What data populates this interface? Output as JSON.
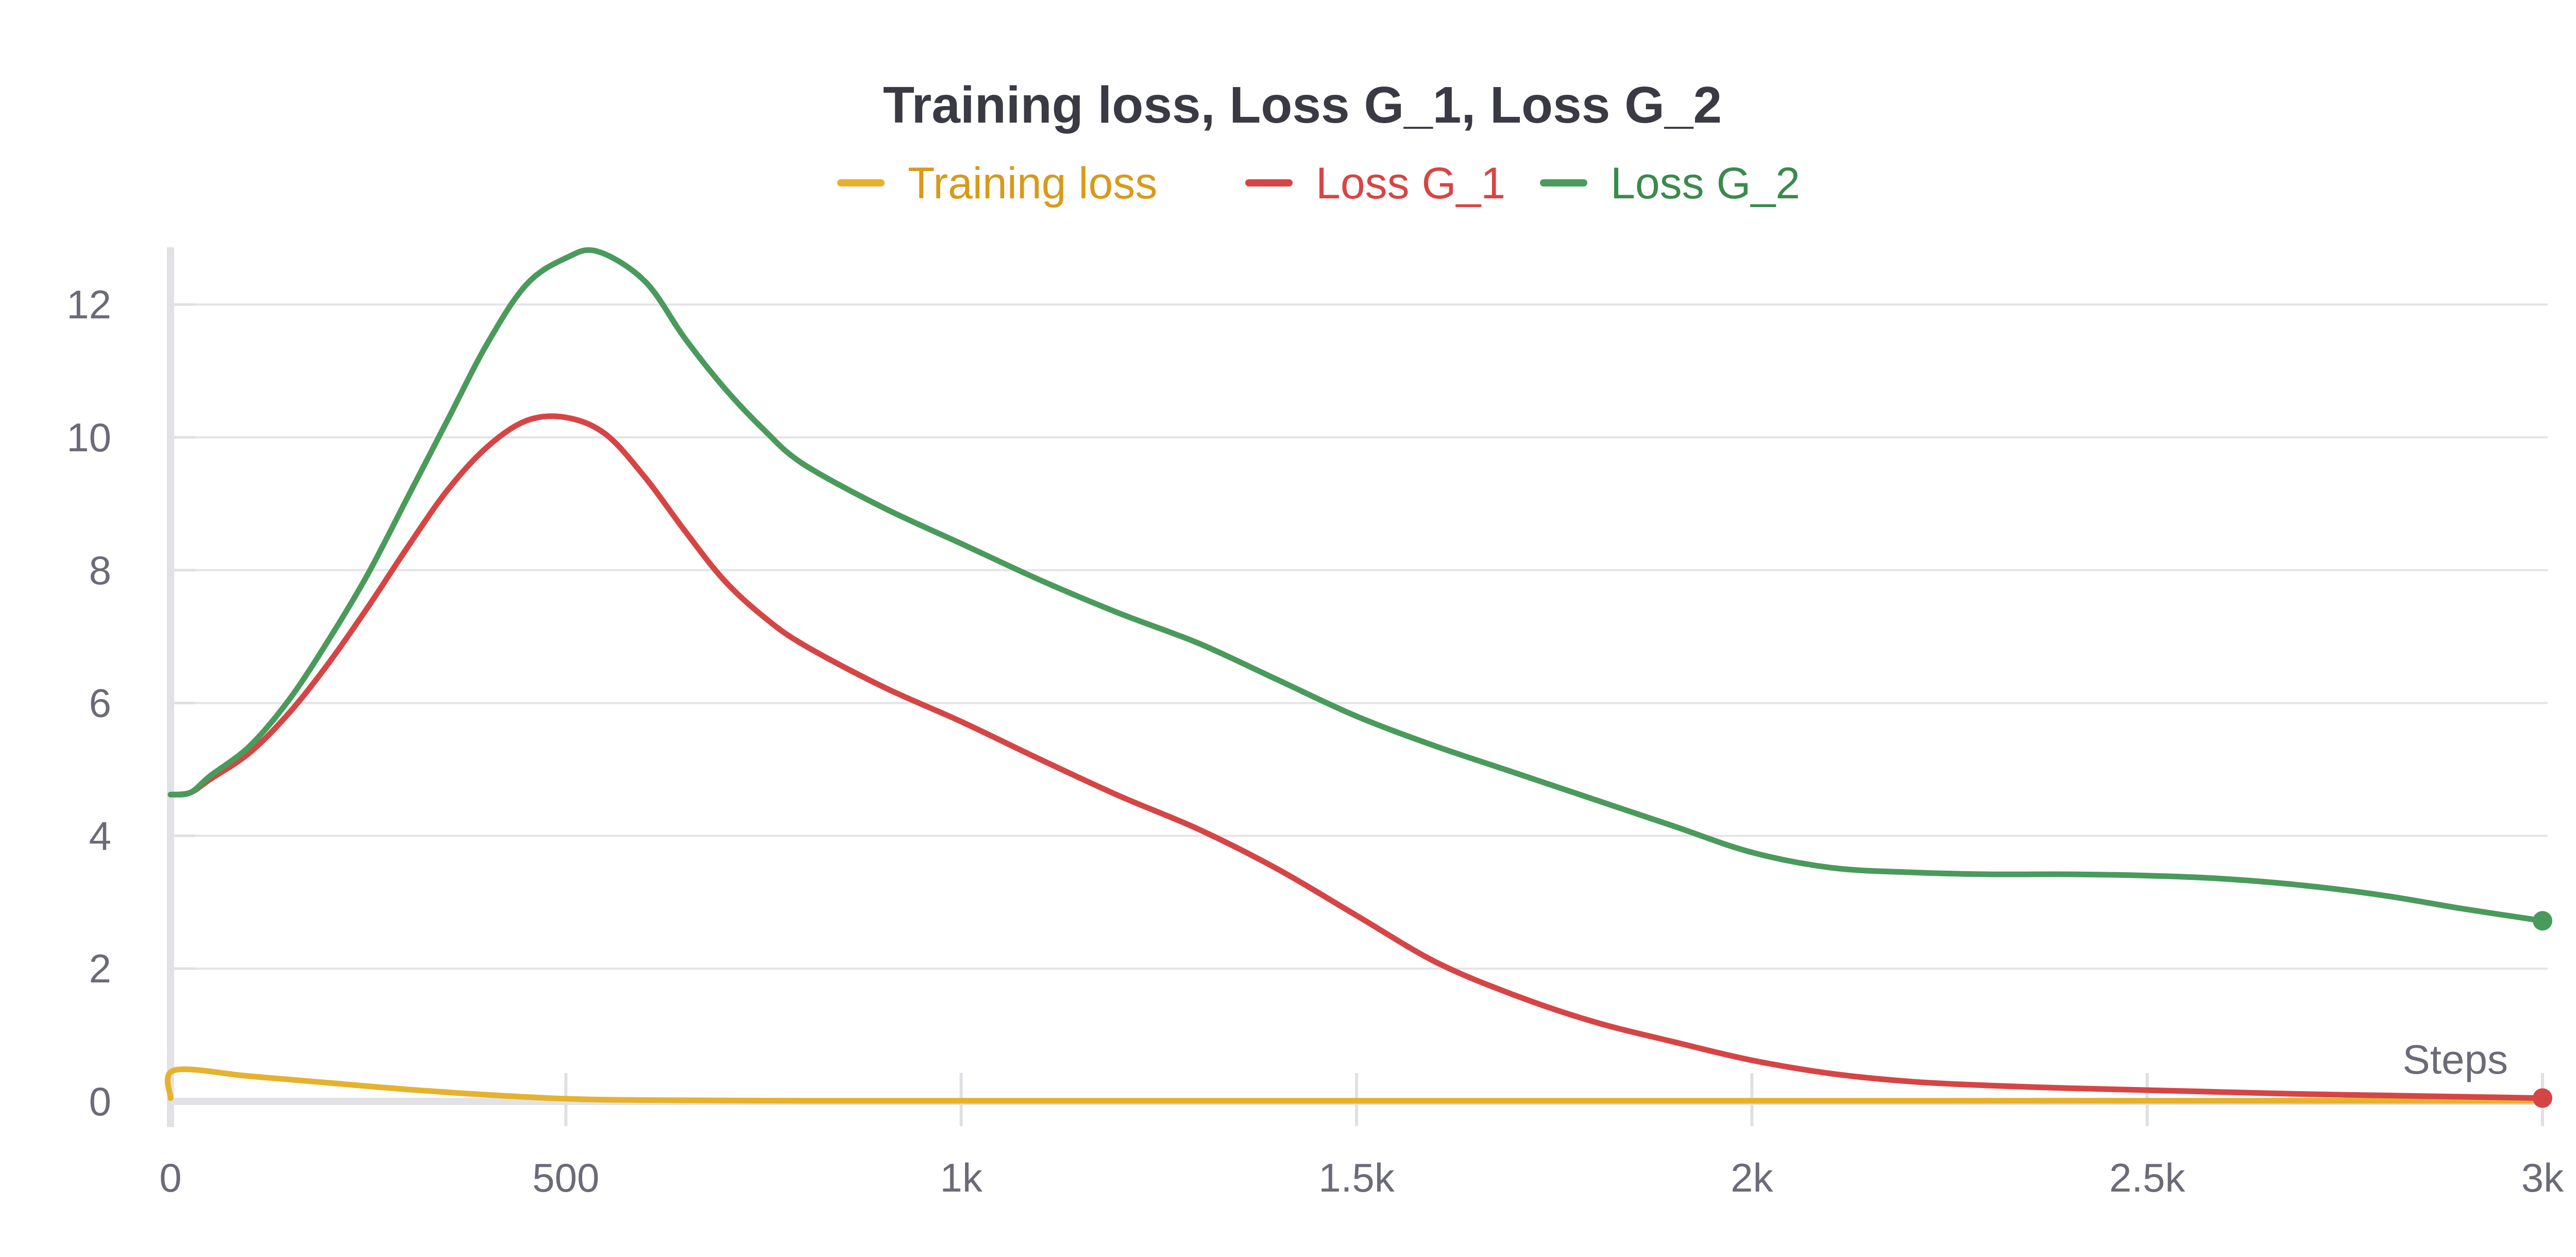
{
  "chart_data": {
    "type": "line",
    "title": "Training loss, Loss G_1, Loss G_2",
    "xlabel": "Steps",
    "ylabel": "",
    "xlim": [
      0,
      3000
    ],
    "ylim": [
      0,
      12.8
    ],
    "x_ticks": [
      {
        "value": 0,
        "label": "0"
      },
      {
        "value": 500,
        "label": "500"
      },
      {
        "value": 1000,
        "label": "1k"
      },
      {
        "value": 1500,
        "label": "1.5k"
      },
      {
        "value": 2000,
        "label": "2k"
      },
      {
        "value": 2500,
        "label": "2.5k"
      },
      {
        "value": 3000,
        "label": "3k"
      }
    ],
    "y_ticks": [
      {
        "value": 0,
        "label": "0"
      },
      {
        "value": 2,
        "label": "2"
      },
      {
        "value": 4,
        "label": "4"
      },
      {
        "value": 6,
        "label": "6"
      },
      {
        "value": 8,
        "label": "8"
      },
      {
        "value": 10,
        "label": "10"
      },
      {
        "value": 12,
        "label": "12"
      }
    ],
    "grid": true,
    "legend_position": "top-center",
    "series": [
      {
        "name": "Training loss",
        "color": "#e6b22e",
        "legend_text_color": "#d89a1a",
        "end_marker": false,
        "x": [
          0,
          5,
          100,
          200,
          300,
          400,
          500,
          600,
          800,
          1000,
          1500,
          2000,
          2500,
          3000
        ],
        "y": [
          0.05,
          0.47,
          0.38,
          0.28,
          0.18,
          0.1,
          0.04,
          0.02,
          0.01,
          0.01,
          0.01,
          0.01,
          0.01,
          0.01
        ]
      },
      {
        "name": "Loss G_1",
        "color": "#d64545",
        "legend_text_color": "#d64545",
        "end_marker": true,
        "x": [
          0,
          25,
          50,
          100,
          150,
          200,
          250,
          300,
          350,
          400,
          450,
          500,
          550,
          600,
          650,
          700,
          750,
          800,
          900,
          1000,
          1100,
          1200,
          1300,
          1400,
          1500,
          1600,
          1700,
          1800,
          1900,
          2000,
          2100,
          2200,
          2300,
          2400,
          2500,
          2600,
          2700,
          2800,
          2900,
          3000
        ],
        "y": [
          4.62,
          4.65,
          4.85,
          5.25,
          5.85,
          6.6,
          7.45,
          8.35,
          9.2,
          9.85,
          10.25,
          10.3,
          10.05,
          9.4,
          8.6,
          7.85,
          7.3,
          6.88,
          6.25,
          5.72,
          5.15,
          4.6,
          4.1,
          3.5,
          2.8,
          2.1,
          1.6,
          1.2,
          0.9,
          0.62,
          0.42,
          0.3,
          0.24,
          0.2,
          0.17,
          0.14,
          0.11,
          0.09,
          0.07,
          0.05
        ]
      },
      {
        "name": "Loss G_2",
        "color": "#4a9a5c",
        "legend_text_color": "#3a8a4c",
        "end_marker": true,
        "x": [
          0,
          25,
          50,
          100,
          150,
          200,
          250,
          300,
          350,
          400,
          450,
          500,
          540,
          600,
          650,
          700,
          750,
          800,
          900,
          1000,
          1100,
          1200,
          1300,
          1400,
          1500,
          1600,
          1700,
          1800,
          1900,
          2000,
          2100,
          2200,
          2300,
          2400,
          2500,
          2600,
          2700,
          2800,
          2900,
          3000
        ],
        "y": [
          4.62,
          4.65,
          4.9,
          5.35,
          6.05,
          6.95,
          7.95,
          9.1,
          10.25,
          11.4,
          12.3,
          12.7,
          12.8,
          12.35,
          11.5,
          10.75,
          10.12,
          9.6,
          8.95,
          8.4,
          7.85,
          7.35,
          6.9,
          6.35,
          5.8,
          5.35,
          4.95,
          4.55,
          4.15,
          3.75,
          3.52,
          3.45,
          3.42,
          3.42,
          3.4,
          3.35,
          3.25,
          3.1,
          2.9,
          2.72
        ]
      }
    ]
  }
}
